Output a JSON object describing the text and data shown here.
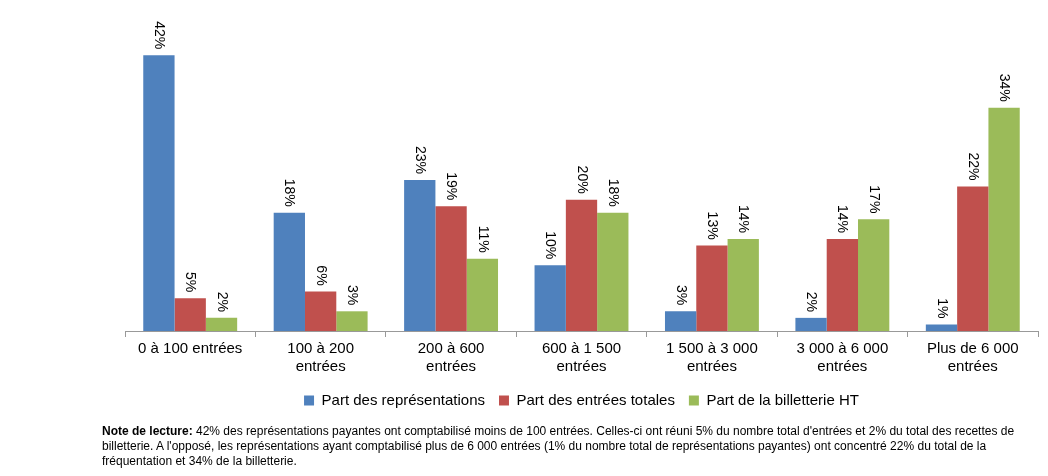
{
  "chart_data": {
    "type": "bar",
    "categories": [
      "0 à 100 entrées",
      "100 à 200 entrées",
      "200 à 600 entrées",
      "600 à 1 500 entrées",
      "1 500 à 3 000 entrées",
      "3 000 à 6 000 entrées",
      "Plus de 6 000 entrées"
    ],
    "series": [
      {
        "name": "Part des représentations",
        "color": "#4f81bd",
        "values": [
          42,
          18,
          23,
          10,
          3,
          2,
          1
        ],
        "value_labels": [
          "42%",
          "18%",
          "23%",
          "10%",
          "3%",
          "2%",
          "1%"
        ]
      },
      {
        "name": "Part des entrées totales",
        "color": "#c0504d",
        "values": [
          5,
          6,
          19,
          20,
          13,
          14,
          22
        ],
        "value_labels": [
          "5%",
          "6%",
          "19%",
          "20%",
          "13%",
          "14%",
          "22%"
        ]
      },
      {
        "name": "Part de la billetterie HT",
        "color": "#9bbb59",
        "values": [
          2,
          3,
          11,
          18,
          14,
          17,
          34
        ],
        "value_labels": [
          "2%",
          "3%",
          "11%",
          "18%",
          "14%",
          "17%",
          "34%"
        ]
      }
    ],
    "legend": "bottom",
    "grid": false,
    "annotations": [
      "Note de lecture: 42% des représentations payantes ont comptabilisé moins de 100 entrées. Celles-ci ont réuni 5% du nombre total d'entrées et 2% du total des recettes de billetterie. A l'opposé, les représentations ayant comptabilisé plus de 6 000 entrées (1% du nombre total de représentations payantes) ont concentré 22% du total de la fréquentation et 34% de la billetterie."
    ]
  }
}
